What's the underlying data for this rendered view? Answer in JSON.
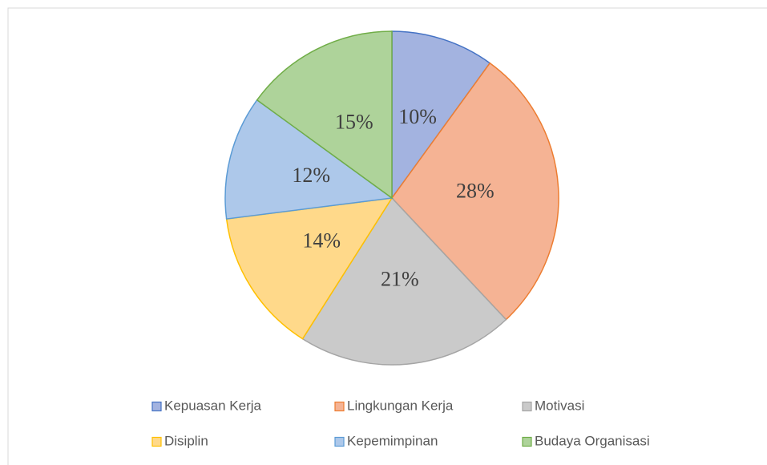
{
  "chart_data": {
    "type": "pie",
    "categories": [
      "Kepuasan Kerja",
      "Lingkungan Kerja",
      "Motivasi",
      "Disiplin",
      "Kepemimpinan",
      "Budaya Organisasi"
    ],
    "values": [
      10,
      28,
      21,
      14,
      12,
      15
    ],
    "value_labels": [
      "10%",
      "28%",
      "21%",
      "14%",
      "12%",
      "15%"
    ],
    "colors": [
      "#a3b3e0",
      "#f5b394",
      "#cacaca",
      "#ffd98a",
      "#adc8ea",
      "#aed39a"
    ],
    "edge_colors": [
      "#4472c4",
      "#ed7d31",
      "#a5a5a5",
      "#ffc000",
      "#5b9bd5",
      "#70ad47"
    ],
    "legend": "bottom"
  }
}
